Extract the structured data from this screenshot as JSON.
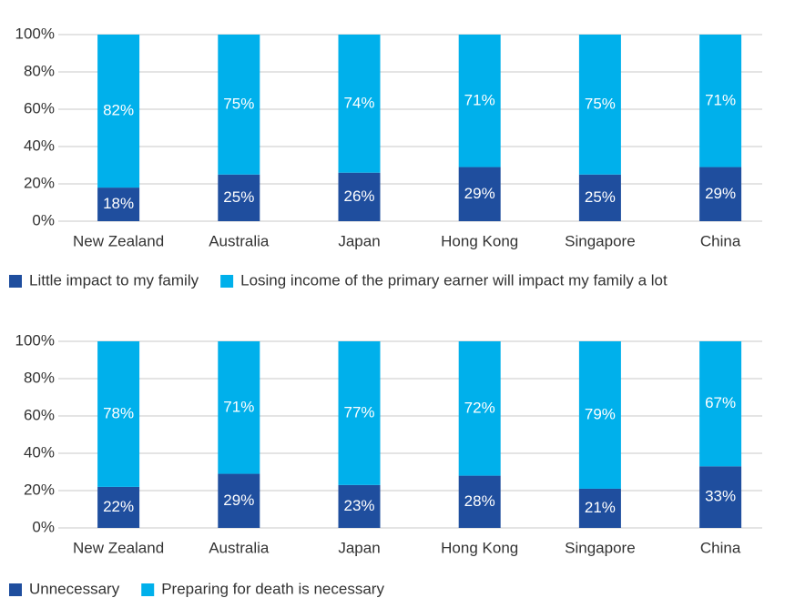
{
  "chart_data": [
    {
      "type": "stacked-bar",
      "categories": [
        "New Zealand",
        "Australia",
        "Japan",
        "Hong Kong",
        "Singapore",
        "China"
      ],
      "series": [
        {
          "name": "Little impact to my family",
          "color": "#1f4e9e",
          "values": [
            18,
            25,
            26,
            29,
            25,
            29
          ],
          "value_labels": [
            "18%",
            "25%",
            "26%",
            "29%",
            "25%",
            "29%"
          ]
        },
        {
          "name": "Losing income of the primary earner will impact my family a lot",
          "color": "#00b0eb",
          "values": [
            82,
            75,
            74,
            71,
            75,
            71
          ],
          "value_labels": [
            "82%",
            "75%",
            "74%",
            "71%",
            "75%",
            "71%"
          ]
        }
      ],
      "ylim": [
        0,
        100
      ],
      "yticks": [
        {
          "value": 0,
          "label": "0%"
        },
        {
          "value": 20,
          "label": "20%"
        },
        {
          "value": 40,
          "label": "40%"
        },
        {
          "value": 60,
          "label": "60%"
        },
        {
          "value": 80,
          "label": "80%"
        },
        {
          "value": 100,
          "label": "100%"
        }
      ],
      "grid": true,
      "legend": "bottom"
    },
    {
      "type": "stacked-bar",
      "categories": [
        "New Zealand",
        "Australia",
        "Japan",
        "Hong Kong",
        "Singapore",
        "China"
      ],
      "series": [
        {
          "name": "Unnecessary",
          "color": "#1f4e9e",
          "values": [
            22,
            29,
            23,
            28,
            21,
            33
          ],
          "value_labels": [
            "22%",
            "29%",
            "23%",
            "28%",
            "21%",
            "33%"
          ]
        },
        {
          "name": "Preparing for death is necessary",
          "color": "#00b0eb",
          "values": [
            78,
            71,
            77,
            72,
            79,
            67
          ],
          "value_labels": [
            "78%",
            "71%",
            "77%",
            "72%",
            "79%",
            "67%"
          ]
        }
      ],
      "ylim": [
        0,
        100
      ],
      "yticks": [
        {
          "value": 0,
          "label": "0%"
        },
        {
          "value": 20,
          "label": "20%"
        },
        {
          "value": 40,
          "label": "40%"
        },
        {
          "value": 60,
          "label": "60%"
        },
        {
          "value": 80,
          "label": "80%"
        },
        {
          "value": 100,
          "label": "100%"
        }
      ],
      "grid": true,
      "legend": "bottom"
    }
  ]
}
